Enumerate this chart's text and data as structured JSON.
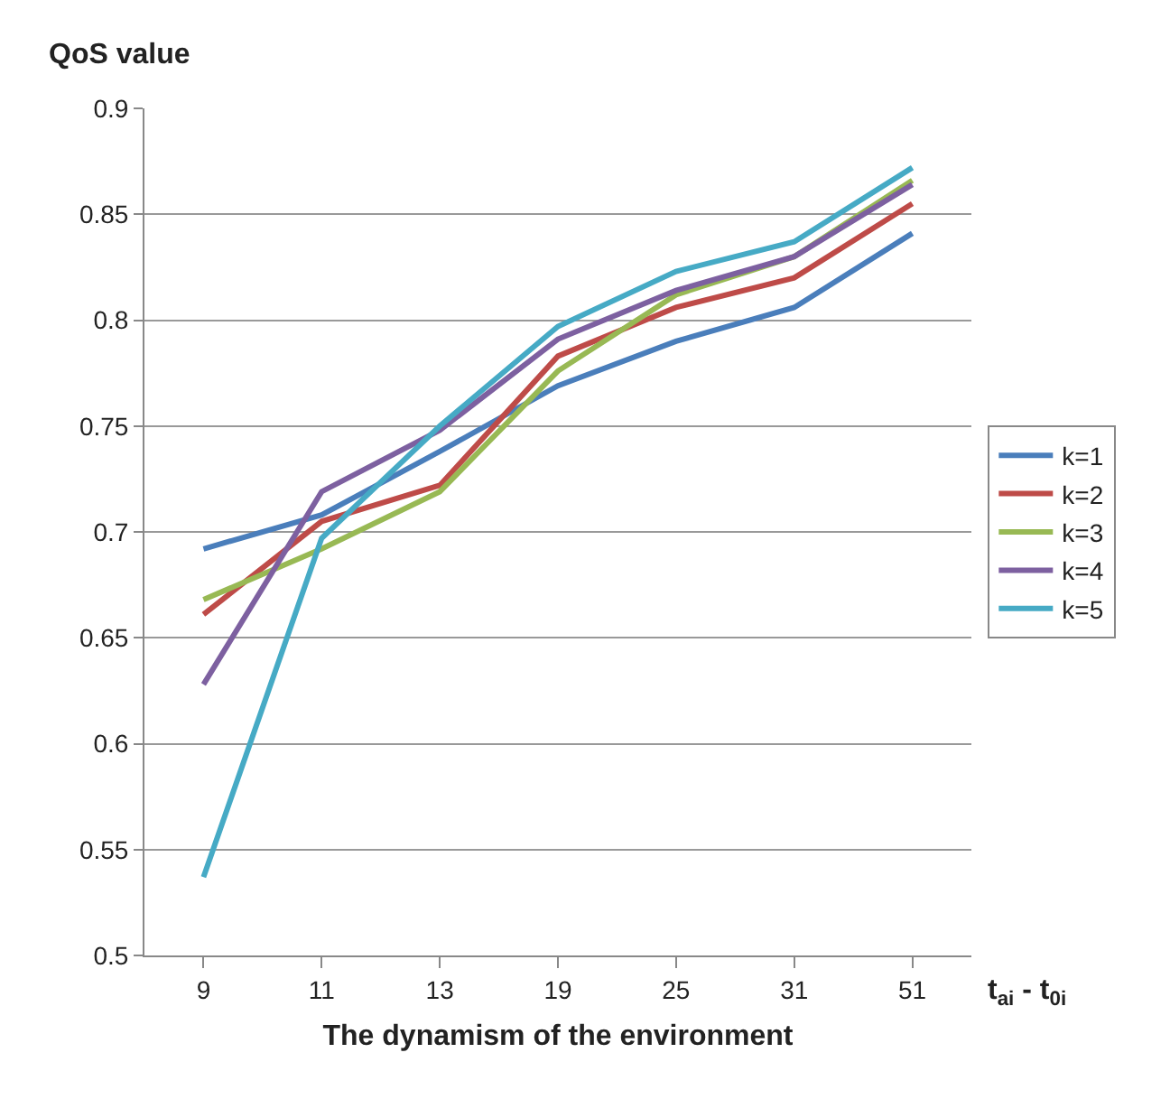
{
  "chart_data": {
    "type": "line",
    "ylabel": "QoS value",
    "xlabel": "The dynamism of the environment",
    "annotations": [
      "t$_{ai}$ - t$_{0i}$"
    ],
    "categories": [
      "9",
      "11",
      "13",
      "19",
      "25",
      "31",
      "51"
    ],
    "series": [
      {
        "name": "k=1",
        "color": "#4a7ebb",
        "values": [
          0.692,
          0.708,
          0.738,
          0.769,
          0.79,
          0.806,
          0.841
        ]
      },
      {
        "name": "k=2",
        "color": "#be4b48",
        "values": [
          0.661,
          0.705,
          0.722,
          0.783,
          0.806,
          0.82,
          0.855
        ]
      },
      {
        "name": "k=3",
        "color": "#98b954",
        "values": [
          0.668,
          0.692,
          0.719,
          0.776,
          0.812,
          0.83,
          0.866
        ]
      },
      {
        "name": "k=4",
        "color": "#7d60a0",
        "values": [
          0.628,
          0.719,
          0.748,
          0.791,
          0.814,
          0.83,
          0.864
        ]
      },
      {
        "name": "k=5",
        "color": "#46aac5",
        "values": [
          0.537,
          0.697,
          0.75,
          0.797,
          0.823,
          0.837,
          0.872
        ]
      }
    ],
    "ylim": [
      0.5,
      0.9
    ],
    "yticks": [
      0.5,
      0.55,
      0.6,
      0.65,
      0.7,
      0.75,
      0.8,
      0.85,
      0.9
    ],
    "grid": "y",
    "legend": "right",
    "marker": "none",
    "line_style": "solid"
  }
}
